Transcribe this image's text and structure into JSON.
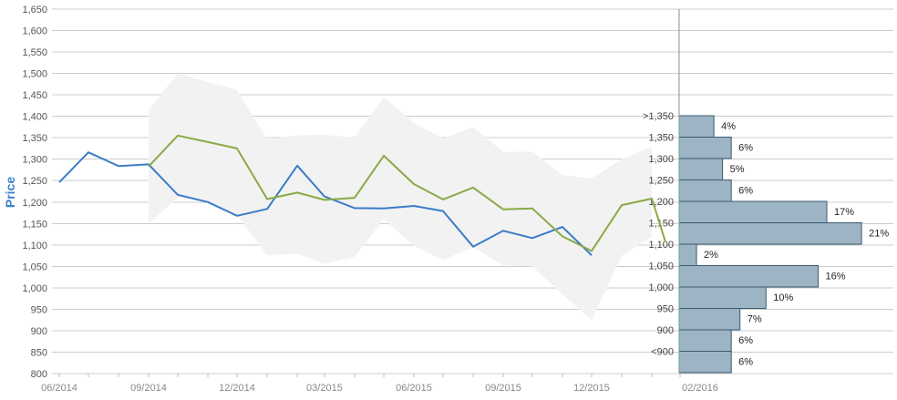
{
  "chart_data": {
    "type": "line",
    "ylabel": "Price",
    "ylim": [
      800,
      1650
    ],
    "y_ticks": [
      "800",
      "850",
      "900",
      "950",
      "1,000",
      "1,050",
      "1,100",
      "1,150",
      "1,200",
      "1,250",
      "1,300",
      "1,350",
      "1,400",
      "1,450",
      "1,500",
      "1,550",
      "1,600",
      "1,650"
    ],
    "x_tick_labels": [
      "06/2014",
      "09/2014",
      "12/2014",
      "03/2015",
      "06/2015",
      "09/2015",
      "12/2015",
      "02/2016"
    ],
    "grid": true,
    "colors": {
      "historical": "#3a7cc8",
      "forecast": "#8aaa45",
      "band": "#f2f2f2",
      "histogram": "#9cb4c3",
      "histogram_border": "#3d5a70",
      "axis": "#7a9a8a",
      "grid": "#cccccc"
    },
    "series": [
      {
        "values": [
          {
            "x": "2014-06-01",
            "y": 1246
          },
          {
            "x": "2014-07-01",
            "y": 1316
          },
          {
            "x": "2014-08-01",
            "y": 1284
          },
          {
            "x": "2014-09-01",
            "y": 1288
          },
          {
            "x": "2014-10-01",
            "y": 1217
          },
          {
            "x": "2014-11-01",
            "y": 1200
          },
          {
            "x": "2014-12-01",
            "y": 1168
          },
          {
            "x": "2015-01-01",
            "y": 1184
          },
          {
            "x": "2015-02-01",
            "y": 1285
          },
          {
            "x": "2015-03-01",
            "y": 1213
          },
          {
            "x": "2015-04-01",
            "y": 1186
          },
          {
            "x": "2015-05-01",
            "y": 1185
          },
          {
            "x": "2015-06-01",
            "y": 1191
          },
          {
            "x": "2015-07-01",
            "y": 1179
          },
          {
            "x": "2015-08-01",
            "y": 1096
          },
          {
            "x": "2015-09-01",
            "y": 1133
          },
          {
            "x": "2015-10-01",
            "y": 1116
          },
          {
            "x": "2015-11-01",
            "y": 1142
          },
          {
            "x": "2015-12-01",
            "y": 1076
          }
        ]
      },
      {
        "values": [
          {
            "x": "2014-09-01",
            "y": 1283
          },
          {
            "x": "2014-10-01",
            "y": 1355
          },
          {
            "x": "2014-11-01",
            "y": 1340
          },
          {
            "x": "2014-12-01",
            "y": 1325
          },
          {
            "x": "2015-01-01",
            "y": 1207
          },
          {
            "x": "2015-02-01",
            "y": 1222
          },
          {
            "x": "2015-03-01",
            "y": 1205
          },
          {
            "x": "2015-04-01",
            "y": 1210
          },
          {
            "x": "2015-05-01",
            "y": 1308
          },
          {
            "x": "2015-06-01",
            "y": 1242
          },
          {
            "x": "2015-07-01",
            "y": 1206
          },
          {
            "x": "2015-08-01",
            "y": 1234
          },
          {
            "x": "2015-09-01",
            "y": 1183
          },
          {
            "x": "2015-10-01",
            "y": 1185
          },
          {
            "x": "2015-11-01",
            "y": 1120
          },
          {
            "x": "2015-12-01",
            "y": 1086
          },
          {
            "x": "2016-01-01",
            "y": 1193
          },
          {
            "x": "2016-02-01",
            "y": 1208
          },
          {
            "x": "2016-02-15",
            "y": 1107
          }
        ]
      }
    ],
    "band": [
      {
        "x": "2014-09-01",
        "low": 1150,
        "high": 1415
      },
      {
        "x": "2014-10-01",
        "low": 1210,
        "high": 1500
      },
      {
        "x": "2014-11-01",
        "low": 1200,
        "high": 1480
      },
      {
        "x": "2014-12-01",
        "low": 1170,
        "high": 1462
      },
      {
        "x": "2015-01-01",
        "low": 1076,
        "high": 1346
      },
      {
        "x": "2015-02-01",
        "low": 1080,
        "high": 1356
      },
      {
        "x": "2015-03-01",
        "low": 1056,
        "high": 1357
      },
      {
        "x": "2015-04-01",
        "low": 1072,
        "high": 1350
      },
      {
        "x": "2015-05-01",
        "low": 1160,
        "high": 1445
      },
      {
        "x": "2015-06-01",
        "low": 1098,
        "high": 1385
      },
      {
        "x": "2015-07-01",
        "low": 1065,
        "high": 1348
      },
      {
        "x": "2015-08-01",
        "low": 1095,
        "high": 1375
      },
      {
        "x": "2015-09-01",
        "low": 1052,
        "high": 1317
      },
      {
        "x": "2015-10-01",
        "low": 1050,
        "high": 1318
      },
      {
        "x": "2015-11-01",
        "low": 985,
        "high": 1263
      },
      {
        "x": "2015-12-01",
        "low": 925,
        "high": 1255
      },
      {
        "x": "2016-01-01",
        "low": 1075,
        "high": 1300
      },
      {
        "x": "2016-02-01",
        "low": 1120,
        "high": 1330
      }
    ],
    "histogram": [
      {
        "label": ">1,350",
        "percent": 4,
        "percent_label": "4%"
      },
      {
        "label": "1,350",
        "percent": 6,
        "percent_label": "6%"
      },
      {
        "label": "1,300",
        "percent": 5,
        "percent_label": "5%"
      },
      {
        "label": "1,250",
        "percent": 6,
        "percent_label": "6%"
      },
      {
        "label": "1,200",
        "percent": 17,
        "percent_label": "17%"
      },
      {
        "label": "1,150",
        "percent": 21,
        "percent_label": "21%"
      },
      {
        "label": "1,100",
        "percent": 2,
        "percent_label": "2%"
      },
      {
        "label": "1,050",
        "percent": 16,
        "percent_label": "16%"
      },
      {
        "label": "1,000",
        "percent": 10,
        "percent_label": "10%"
      },
      {
        "label": "950",
        "percent": 7,
        "percent_label": "7%"
      },
      {
        "label": "900",
        "percent": 6,
        "percent_label": "6%"
      },
      {
        "label": "<900",
        "percent": 6,
        "percent_label": "6%"
      }
    ]
  }
}
